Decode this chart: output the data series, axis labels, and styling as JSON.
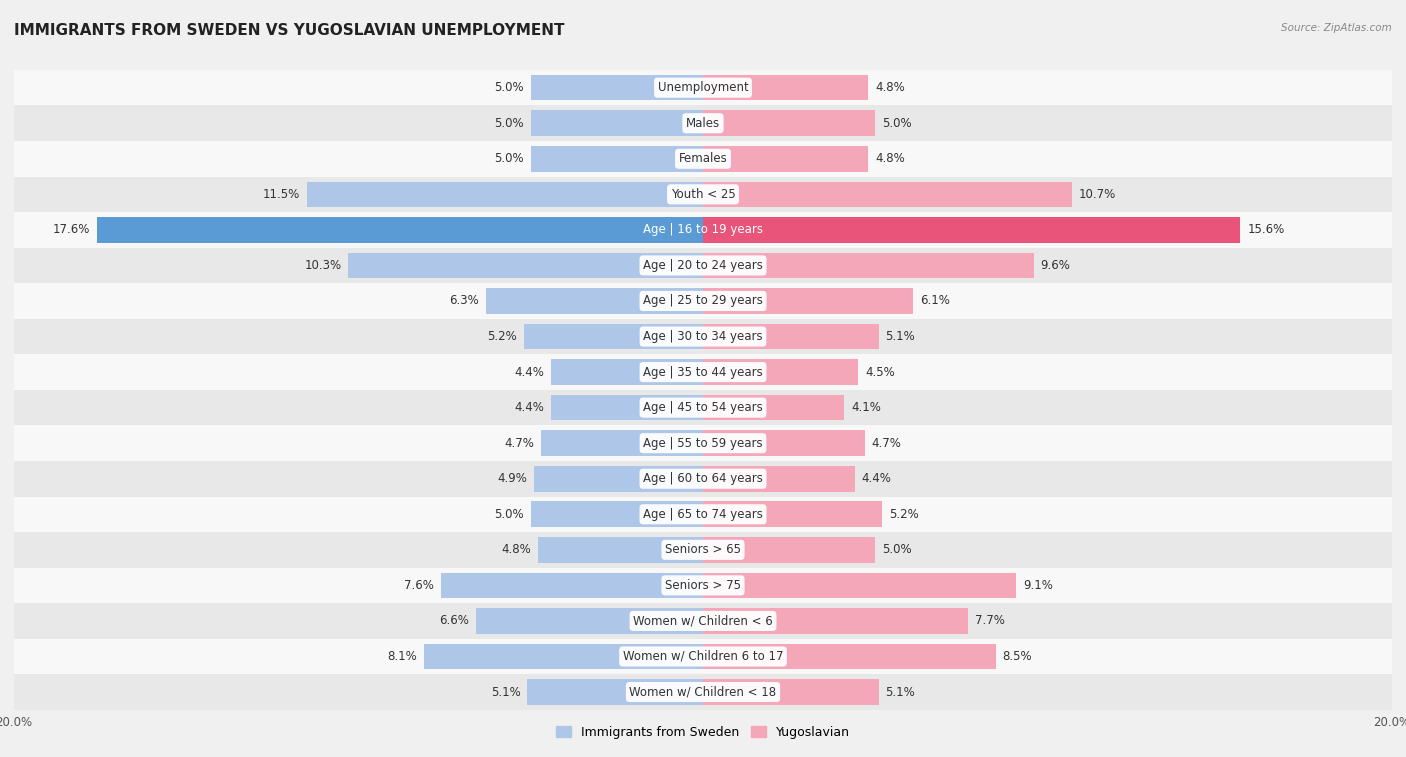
{
  "title": "IMMIGRANTS FROM SWEDEN VS YUGOSLAVIAN UNEMPLOYMENT",
  "source": "Source: ZipAtlas.com",
  "categories": [
    "Unemployment",
    "Males",
    "Females",
    "Youth < 25",
    "Age | 16 to 19 years",
    "Age | 20 to 24 years",
    "Age | 25 to 29 years",
    "Age | 30 to 34 years",
    "Age | 35 to 44 years",
    "Age | 45 to 54 years",
    "Age | 55 to 59 years",
    "Age | 60 to 64 years",
    "Age | 65 to 74 years",
    "Seniors > 65",
    "Seniors > 75",
    "Women w/ Children < 6",
    "Women w/ Children 6 to 17",
    "Women w/ Children < 18"
  ],
  "sweden_values": [
    5.0,
    5.0,
    5.0,
    11.5,
    17.6,
    10.3,
    6.3,
    5.2,
    4.4,
    4.4,
    4.7,
    4.9,
    5.0,
    4.8,
    7.6,
    6.6,
    8.1,
    5.1
  ],
  "yugoslav_values": [
    4.8,
    5.0,
    4.8,
    10.7,
    15.6,
    9.6,
    6.1,
    5.1,
    4.5,
    4.1,
    4.7,
    4.4,
    5.2,
    5.0,
    9.1,
    7.7,
    8.5,
    5.1
  ],
  "sweden_color": "#aec6e8",
  "yugoslav_color": "#f4a7b9",
  "sweden_highlight_color": "#5b9bd5",
  "yugoslav_highlight_color": "#e8547a",
  "highlight_index": 4,
  "xlim": 20.0,
  "background_color": "#f0f0f0",
  "row_bg_colors": [
    "#f8f8f8",
    "#e8e8e8"
  ],
  "legend_sweden": "Immigrants from Sweden",
  "legend_yugoslav": "Yugoslavian",
  "bottom_tick_labels": [
    "20.0%",
    "20.0%"
  ],
  "label_fontsize": 8.5,
  "title_fontsize": 11,
  "bar_height": 0.72
}
